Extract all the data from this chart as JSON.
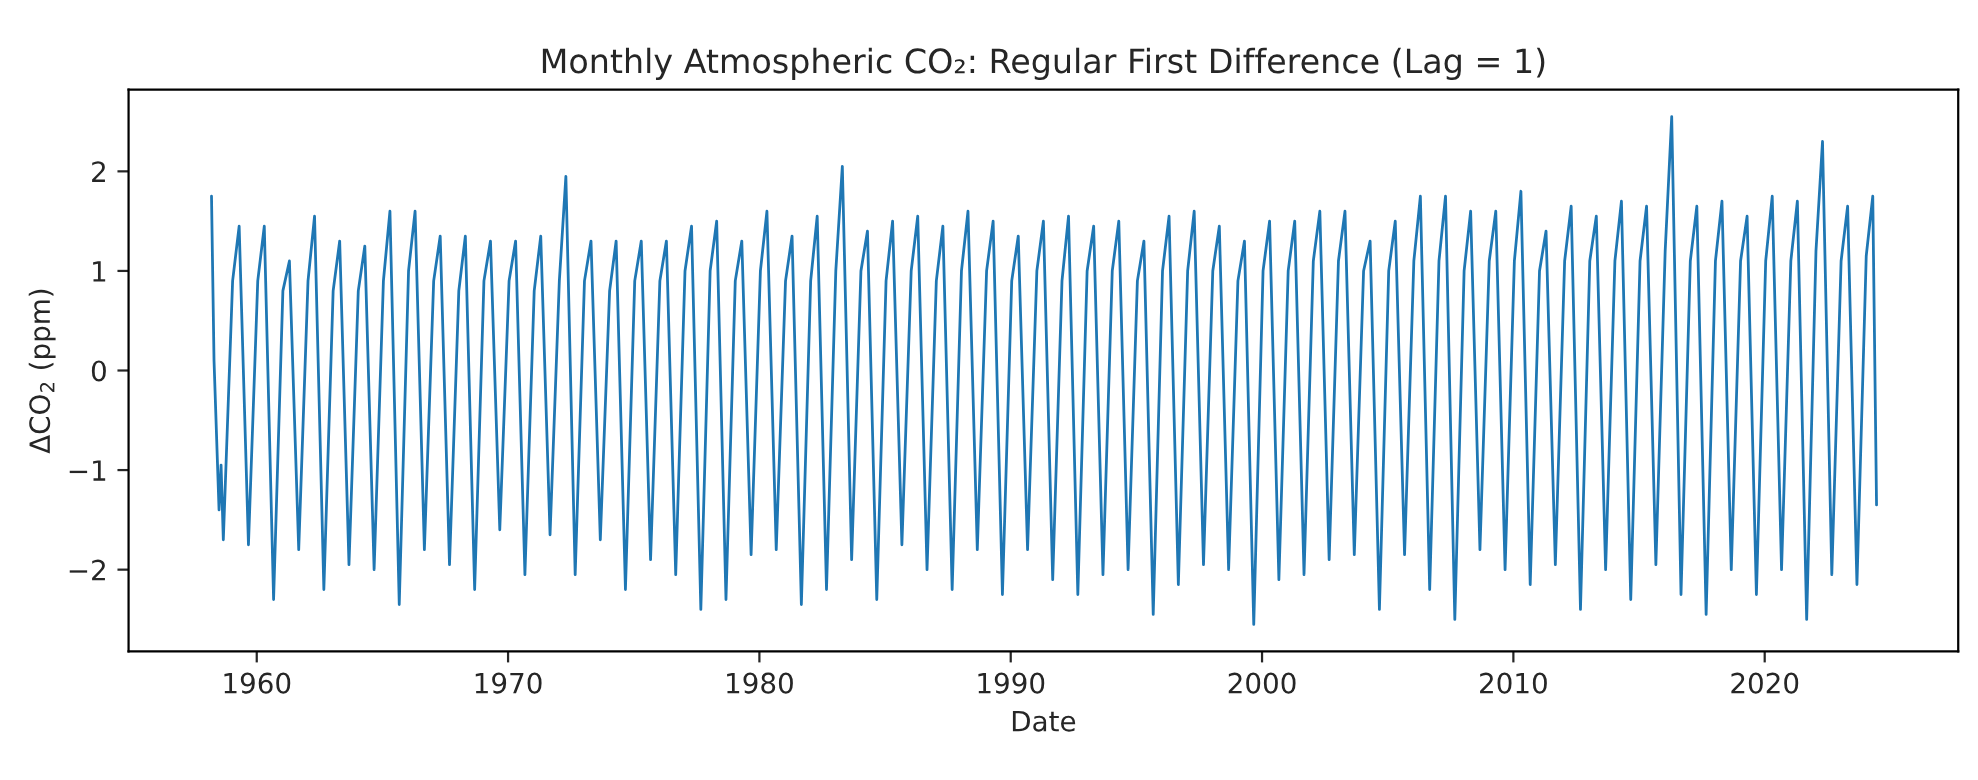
{
  "chart_data": {
    "type": "line",
    "title": "Monthly Atmospheric CO₂: Regular First Difference (Lag = 1)",
    "xlabel": "Date",
    "ylabel": "ΔCO$_{2}$ (ppm)",
    "xlim": [
      1954.9,
      2027.7
    ],
    "xticks": [
      1960,
      1970,
      1980,
      1990,
      2000,
      2010,
      2020
    ],
    "ylim": [
      -2.82,
      2.82
    ],
    "yticks": [
      {
        "value": -2,
        "label": "−2"
      },
      {
        "value": -1,
        "label": "−1"
      },
      0,
      1,
      2
    ],
    "grid": false,
    "legend": false,
    "series": [
      {
        "color": "#1f77b4",
        "x": [
          1958.2,
          1958.3,
          1958.5,
          1958.58,
          1958.67,
          1959.04,
          1959.3,
          1959.67,
          1960.04,
          1960.3,
          1960.67,
          1961.04,
          1961.3,
          1961.67,
          1962.04,
          1962.3,
          1962.67,
          1963.04,
          1963.3,
          1963.67,
          1964.04,
          1964.3,
          1964.67,
          1965.04,
          1965.3,
          1965.67,
          1966.04,
          1966.3,
          1966.67,
          1967.04,
          1967.3,
          1967.67,
          1968.04,
          1968.3,
          1968.67,
          1969.04,
          1969.3,
          1969.67,
          1970.04,
          1970.3,
          1970.67,
          1971.04,
          1971.3,
          1971.67,
          1972.04,
          1972.3,
          1972.67,
          1973.04,
          1973.3,
          1973.67,
          1974.04,
          1974.3,
          1974.67,
          1975.04,
          1975.3,
          1975.67,
          1976.04,
          1976.3,
          1976.67,
          1977.04,
          1977.3,
          1977.67,
          1978.04,
          1978.3,
          1978.67,
          1979.04,
          1979.3,
          1979.67,
          1980.04,
          1980.3,
          1980.67,
          1981.04,
          1981.3,
          1981.67,
          1982.04,
          1982.3,
          1982.67,
          1983.04,
          1983.3,
          1983.67,
          1984.04,
          1984.3,
          1984.67,
          1985.04,
          1985.3,
          1985.67,
          1986.04,
          1986.3,
          1986.67,
          1987.04,
          1987.3,
          1987.67,
          1988.04,
          1988.3,
          1988.67,
          1989.04,
          1989.3,
          1989.67,
          1990.04,
          1990.3,
          1990.67,
          1991.04,
          1991.3,
          1991.67,
          1992.04,
          1992.3,
          1992.67,
          1993.04,
          1993.3,
          1993.67,
          1994.04,
          1994.3,
          1994.67,
          1995.04,
          1995.3,
          1995.67,
          1996.04,
          1996.3,
          1996.67,
          1997.04,
          1997.3,
          1997.67,
          1998.04,
          1998.3,
          1998.67,
          1999.04,
          1999.3,
          1999.67,
          2000.04,
          2000.3,
          2000.67,
          2001.04,
          2001.3,
          2001.67,
          2002.04,
          2002.3,
          2002.67,
          2003.04,
          2003.3,
          2003.67,
          2004.04,
          2004.3,
          2004.67,
          2005.04,
          2005.3,
          2005.67,
          2006.04,
          2006.3,
          2006.67,
          2007.04,
          2007.3,
          2007.67,
          2008.04,
          2008.3,
          2008.67,
          2009.04,
          2009.3,
          2009.67,
          2010.04,
          2010.3,
          2010.67,
          2011.04,
          2011.3,
          2011.67,
          2012.04,
          2012.3,
          2012.67,
          2013.04,
          2013.3,
          2013.67,
          2014.04,
          2014.3,
          2014.67,
          2015.04,
          2015.3,
          2015.67,
          2016.04,
          2016.3,
          2016.67,
          2017.04,
          2017.3,
          2017.67,
          2018.04,
          2018.3,
          2018.67,
          2019.04,
          2019.3,
          2019.67,
          2020.04,
          2020.3,
          2020.67,
          2021.04,
          2021.3,
          2021.67,
          2022.04,
          2022.3,
          2022.67,
          2023.04,
          2023.3,
          2023.67,
          2024.04,
          2024.3,
          2024.45
        ],
        "values": [
          1.75,
          0.1,
          -1.4,
          -0.95,
          -1.7,
          0.9,
          1.45,
          -1.75,
          0.9,
          1.45,
          -2.3,
          0.8,
          1.1,
          -1.8,
          0.9,
          1.55,
          -2.2,
          0.8,
          1.3,
          -1.95,
          0.8,
          1.25,
          -2.0,
          0.9,
          1.6,
          -2.35,
          1.0,
          1.6,
          -1.8,
          0.9,
          1.35,
          -1.95,
          0.8,
          1.35,
          -2.2,
          0.9,
          1.3,
          -1.6,
          0.9,
          1.3,
          -2.05,
          0.8,
          1.35,
          -1.65,
          0.9,
          1.95,
          -2.05,
          0.9,
          1.3,
          -1.7,
          0.8,
          1.3,
          -2.2,
          0.9,
          1.3,
          -1.9,
          0.9,
          1.3,
          -2.05,
          1.0,
          1.45,
          -2.4,
          1.0,
          1.5,
          -2.3,
          0.9,
          1.3,
          -1.85,
          1.0,
          1.6,
          -1.8,
          0.9,
          1.35,
          -2.35,
          0.9,
          1.55,
          -2.2,
          1.0,
          2.05,
          -1.9,
          1.0,
          1.4,
          -2.3,
          0.9,
          1.5,
          -1.75,
          1.0,
          1.55,
          -2.0,
          0.9,
          1.45,
          -2.2,
          1.0,
          1.6,
          -1.8,
          1.0,
          1.5,
          -2.25,
          0.9,
          1.35,
          -1.8,
          1.0,
          1.5,
          -2.1,
          0.9,
          1.55,
          -2.25,
          1.0,
          1.45,
          -2.05,
          1.0,
          1.5,
          -2.0,
          0.9,
          1.3,
          -2.45,
          1.0,
          1.55,
          -2.15,
          1.0,
          1.6,
          -1.95,
          1.0,
          1.45,
          -2.0,
          0.9,
          1.3,
          -2.55,
          1.0,
          1.5,
          -2.1,
          1.0,
          1.5,
          -2.05,
          1.1,
          1.6,
          -1.9,
          1.1,
          1.6,
          -1.85,
          1.0,
          1.3,
          -2.4,
          1.0,
          1.5,
          -1.85,
          1.1,
          1.75,
          -2.2,
          1.1,
          1.75,
          -2.5,
          1.0,
          1.6,
          -1.8,
          1.1,
          1.6,
          -2.0,
          1.1,
          1.8,
          -2.15,
          1.0,
          1.4,
          -1.95,
          1.1,
          1.65,
          -2.4,
          1.1,
          1.55,
          -2.0,
          1.1,
          1.7,
          -2.3,
          1.1,
          1.65,
          -1.95,
          1.2,
          2.55,
          -2.25,
          1.1,
          1.65,
          -2.45,
          1.1,
          1.7,
          -2.0,
          1.1,
          1.55,
          -2.25,
          1.1,
          1.75,
          -2.0,
          1.1,
          1.7,
          -2.5,
          1.2,
          2.3,
          -2.05,
          1.1,
          1.65,
          -2.15,
          1.15,
          1.75,
          -1.35
        ]
      }
    ]
  }
}
